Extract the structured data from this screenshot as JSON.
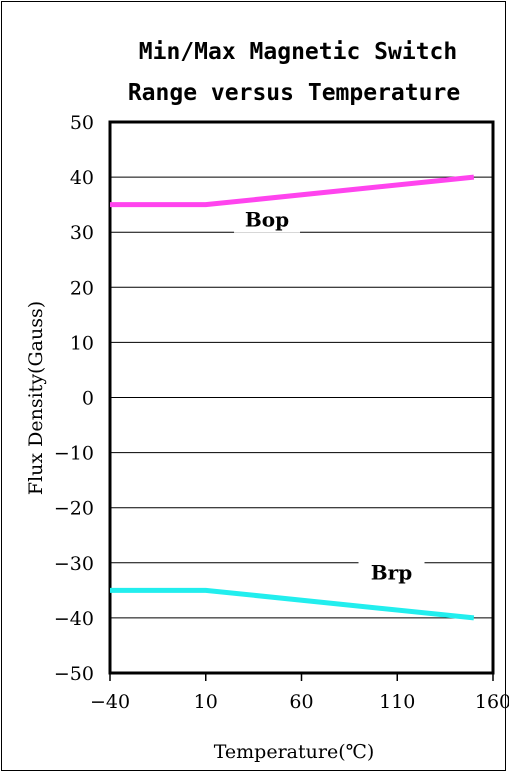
{
  "chart_data": {
    "type": "line",
    "title_lines": [
      "Min/Max Magnetic Switch",
      "Range versus Temperature"
    ],
    "xlabel": "Temperature(℃)",
    "ylabel": "Flux Density(Gauss)",
    "x_ticks": [
      "-40",
      "10",
      "60",
      "110",
      "160"
    ],
    "y_ticks": [
      "50",
      "40",
      "30",
      "20",
      "10",
      "0",
      "-10",
      "-20",
      "-30",
      "-40",
      "-50"
    ],
    "xlim": [
      -40,
      160
    ],
    "ylim": [
      -50,
      50
    ],
    "grid": "horizontal",
    "series": [
      {
        "name": "Bop",
        "color": "#ff44ee",
        "x": [
          -40,
          10,
          150
        ],
        "y": [
          35,
          35,
          40
        ],
        "label_at": [
          42,
          31
        ]
      },
      {
        "name": "Brp",
        "color": "#22eeee",
        "x": [
          -40,
          10,
          150
        ],
        "y": [
          -35,
          -35,
          -40
        ],
        "label_at": [
          107,
          -33
        ]
      }
    ]
  }
}
